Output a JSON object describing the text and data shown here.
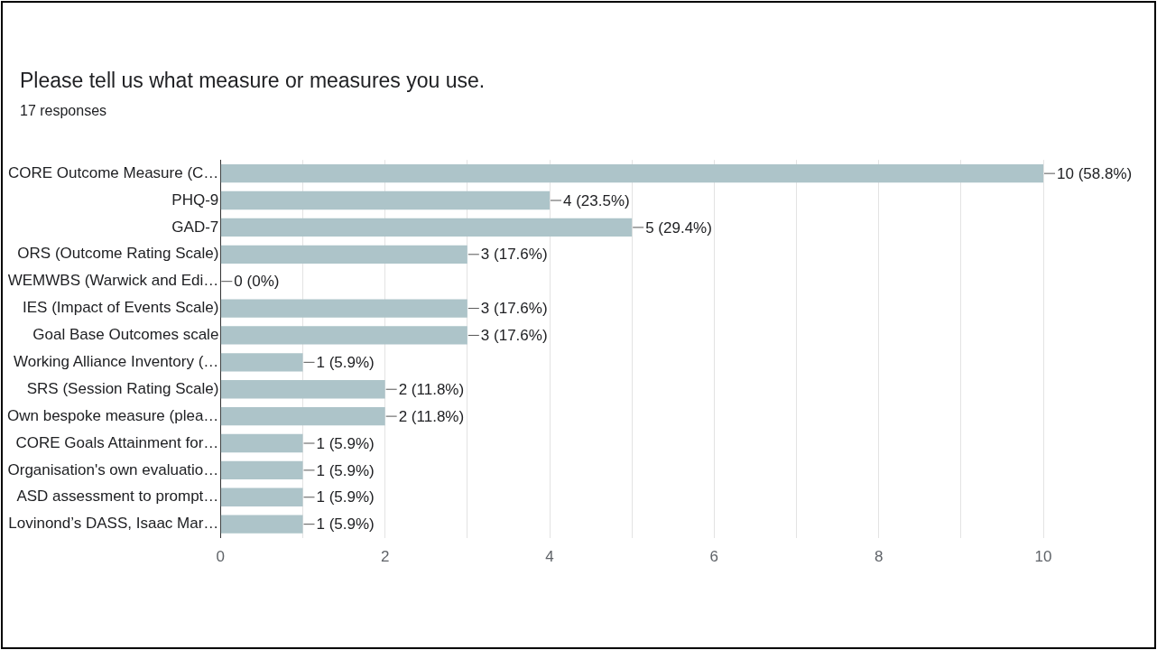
{
  "chart_data": {
    "type": "bar",
    "orientation": "horizontal",
    "title": "Please tell us what measure or measures you use.",
    "subtitle": "17 responses",
    "categories": [
      "CORE Outcome Measure (C…",
      "PHQ-9",
      "GAD-7",
      "ORS (Outcome Rating Scale)",
      "WEMWBS (Warwick and Edi…",
      "IES (Impact of Events Scale)",
      "Goal Base Outcomes scale",
      "Working Alliance Inventory (…",
      "SRS (Session Rating Scale)",
      "Own bespoke measure (plea…",
      "CORE Goals Attainment for…",
      "Organisation's own evaluatio…",
      "ASD assessment to prompt…",
      "Lovinond’s DASS, Isaac Mar…"
    ],
    "values": [
      10,
      4,
      5,
      3,
      0,
      3,
      3,
      1,
      2,
      2,
      1,
      1,
      1,
      1
    ],
    "value_labels": [
      "10 (58.8%)",
      "4 (23.5%)",
      "5 (29.4%)",
      "3 (17.6%)",
      "0 (0%)",
      "3 (17.6%)",
      "3 (17.6%)",
      "1 (5.9%)",
      "2 (11.8%)",
      "2 (11.8%)",
      "1 (5.9%)",
      "1 (5.9%)",
      "1 (5.9%)",
      "1 (5.9%)"
    ],
    "color": "#adc4c9",
    "xlim": [
      0,
      10
    ],
    "xticks": [
      0,
      {
        "value": 1,
        "label": null
      },
      2,
      {
        "value": 3,
        "label": null
      },
      4,
      {
        "value": 5,
        "label": null
      },
      6,
      {
        "value": 7,
        "label": null
      },
      8,
      {
        "value": 9,
        "label": null
      },
      10
    ],
    "grid": "x"
  }
}
